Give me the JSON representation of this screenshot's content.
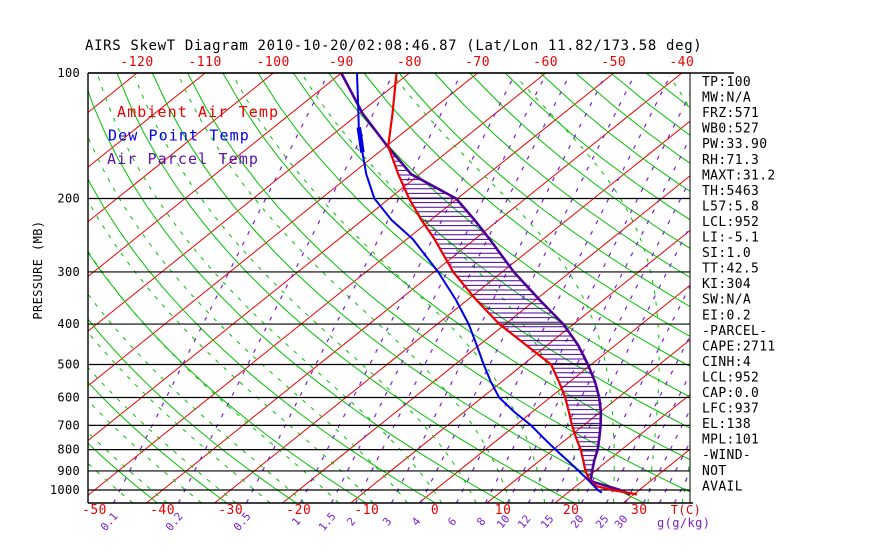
{
  "title": "AIRS SkewT Diagram 2010-10-20/02:08:46.87 (Lat/Lon 11.82/173.58 deg)",
  "legend": [
    {
      "label": "Ambient Air Temp",
      "color": "#ee0000"
    },
    {
      "label": "Dew Point Temp",
      "color": "#0000e6"
    },
    {
      "label": "Air Parcel Temp",
      "color": "#5c10aa"
    }
  ],
  "stats": [
    "TP:100",
    "MW:N/A",
    "FRZ:571",
    "WB0:527",
    "PW:33.90",
    "RH:71.3",
    "MAXT:31.2",
    "TH:5463",
    "L57:5.8",
    "LCL:952",
    "LI:-5.1",
    "SI:1.0",
    "TT:42.5",
    "KI:304",
    "SW:N/A",
    "EI:0.2",
    "-PARCEL-",
    "CAPE:2711",
    "CINH:4",
    "LCL:952",
    "CAP:0.0",
    "LFC:937",
    "EL:138",
    "MPL:101",
    "-WIND-",
    "NOT",
    "AVAIL"
  ],
  "chart_data": {
    "type": "skewt-log-p",
    "title": "AIRS SkewT Diagram 2010-10-20/02:08:46.87 (Lat/Lon 11.82/173.58 deg)",
    "y_axis": {
      "label": "PRESSURE (MB)",
      "scale": "log",
      "levels": [
        100,
        200,
        300,
        400,
        500,
        600,
        700,
        800,
        900,
        1000
      ]
    },
    "x_axis": {
      "label": "T(C)",
      "top_tick_labels": [
        -120,
        -110,
        -100,
        -90,
        -80,
        -70,
        -60,
        -50,
        -40
      ],
      "bottom_tick_labels": [
        -50,
        -40,
        -30,
        -20,
        -10,
        0,
        10,
        20,
        30
      ]
    },
    "mixing_ratio": {
      "label": "g(g/kg)",
      "lines": [
        [
          "0.1",
          120
        ],
        [
          "0.2",
          185
        ],
        [
          "0.5",
          253
        ],
        [
          "1",
          307
        ],
        [
          "1.5",
          338
        ],
        [
          "2",
          362
        ],
        [
          "3",
          398
        ],
        [
          "4",
          427
        ],
        [
          "6",
          463
        ],
        [
          "8",
          492
        ],
        [
          "10",
          514
        ],
        [
          "12",
          535
        ],
        [
          "15",
          558
        ],
        [
          "20",
          588
        ],
        [
          "25",
          613
        ],
        [
          "30",
          632
        ],
        [
          "",
          650
        ],
        [
          "",
          666
        ],
        [
          "",
          681
        ]
      ]
    },
    "series_note": "curves are [pressure_mb, temp_C] pairs",
    "curves": {
      "ambient": [
        [
          100,
          -81.9
        ],
        [
          125,
          -75.1
        ],
        [
          150,
          -69.7
        ],
        [
          175,
          -63.1
        ],
        [
          200,
          -57.1
        ],
        [
          225,
          -51.4
        ],
        [
          250,
          -46.0
        ],
        [
          300,
          -37.2
        ],
        [
          350,
          -28.7
        ],
        [
          400,
          -20.9
        ],
        [
          450,
          -13.0
        ],
        [
          500,
          -5.9
        ],
        [
          550,
          -1.6
        ],
        [
          600,
          2.2
        ],
        [
          650,
          5.4
        ],
        [
          700,
          8.3
        ],
        [
          750,
          11.2
        ],
        [
          800,
          14.0
        ],
        [
          850,
          16.4
        ],
        [
          900,
          18.6
        ],
        [
          950,
          21.0
        ],
        [
          980,
          23.1
        ],
        [
          1000,
          26.0
        ],
        [
          1015,
          28.8
        ],
        [
          1025,
          30.5
        ]
      ],
      "dew": [
        [
          100,
          -87.7
        ],
        [
          125,
          -80.1
        ],
        [
          135,
          -77.5
        ],
        [
          150,
          -73.6
        ],
        [
          155,
          -72.4
        ],
        [
          175,
          -67.8
        ],
        [
          200,
          -62.2
        ],
        [
          225,
          -55.8
        ],
        [
          250,
          -49.2
        ],
        [
          300,
          -39.4
        ],
        [
          350,
          -31.7
        ],
        [
          400,
          -25.4
        ],
        [
          450,
          -20.3
        ],
        [
          500,
          -15.8
        ],
        [
          550,
          -11.6
        ],
        [
          600,
          -7.5
        ],
        [
          650,
          -2.6
        ],
        [
          700,
          2.3
        ],
        [
          750,
          6.4
        ],
        [
          800,
          10.3
        ],
        [
          850,
          14.1
        ],
        [
          900,
          17.6
        ],
        [
          950,
          20.9
        ],
        [
          1000,
          23.9
        ],
        [
          1015,
          25.0
        ]
      ],
      "parcel": [
        [
          100,
          -90.0
        ],
        [
          125,
          -79.5
        ],
        [
          150,
          -69.8
        ],
        [
          175,
          -61.2
        ],
        [
          200,
          -50.2
        ],
        [
          225,
          -43.6
        ],
        [
          250,
          -37.9
        ],
        [
          300,
          -28.3
        ],
        [
          350,
          -19.4
        ],
        [
          400,
          -11.5
        ],
        [
          450,
          -5.4
        ],
        [
          500,
          -0.5
        ],
        [
          550,
          3.7
        ],
        [
          600,
          7.2
        ],
        [
          650,
          10.1
        ],
        [
          700,
          12.5
        ],
        [
          750,
          14.6
        ],
        [
          800,
          16.5
        ],
        [
          850,
          18.0
        ],
        [
          900,
          19.6
        ],
        [
          952,
          21.2
        ],
        [
          1000,
          27.2
        ],
        [
          1025,
          29.5
        ]
      ]
    },
    "dew_thick_segment_p": [
      133,
      157
    ],
    "hatch": {
      "between": [
        "ambient",
        "parcel"
      ],
      "from_p_level_approx": 952,
      "to_p_level_approx": 150
    },
    "colors": {
      "isotherm": "#ee0000",
      "dry_adiabat": "#00c200",
      "moist_adiabat": "#00c200",
      "mixing_ratio": "#7a1fd6",
      "ambient": "#ee0000",
      "dew": "#0000e6",
      "parcel": "#4c0099",
      "hatch": "#4c0099",
      "grid": "#000000"
    }
  }
}
